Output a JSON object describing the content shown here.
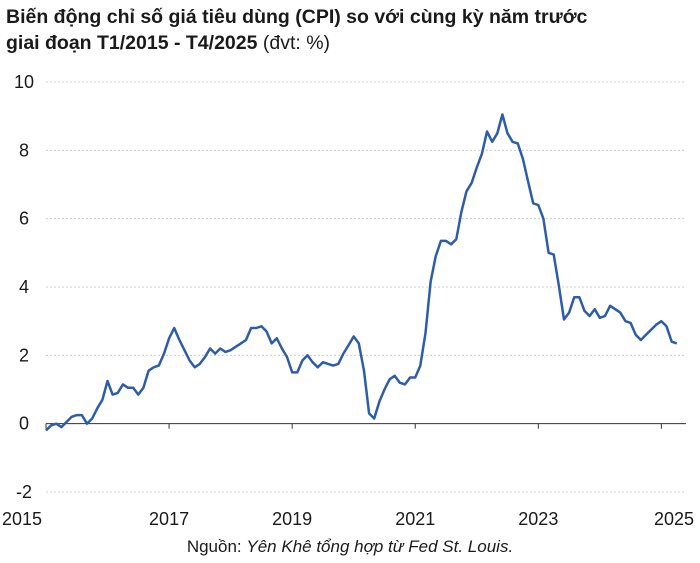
{
  "title": {
    "line1": "Biến động chỉ số giá tiêu dùng (CPI) so với cùng kỳ năm trước",
    "line2": "giai đoạn T1/2015 - T4/2025",
    "unit": "(đvt: %)"
  },
  "source": {
    "label": "Nguồn:",
    "text": "Yên Khê tổng hợp từ Fed St. Louis."
  },
  "colors": {
    "line": "#2d5ca8",
    "grid": "#cccccc",
    "axis": "#333333"
  },
  "chart_data": {
    "type": "line",
    "grid": "horizontal-dashed",
    "legend": "none",
    "ylim": [
      -2,
      10
    ],
    "yticks": [
      -2,
      0,
      2,
      4,
      6,
      8,
      10
    ],
    "xlim": [
      2015,
      2025.4
    ],
    "xticks": [
      2015,
      2017,
      2019,
      2021,
      2023,
      2025
    ],
    "x_unit": "year",
    "series": [
      {
        "x": [
          2015,
          2015.083,
          2015.167,
          2015.25,
          2015.333,
          2015.417,
          2015.5,
          2015.583,
          2015.667,
          2015.75,
          2015.833,
          2015.917,
          2016,
          2016.083,
          2016.167,
          2016.25,
          2016.333,
          2016.417,
          2016.5,
          2016.583,
          2016.667,
          2016.75,
          2016.833,
          2016.917,
          2017,
          2017.083,
          2017.167,
          2017.25,
          2017.333,
          2017.417,
          2017.5,
          2017.583,
          2017.667,
          2017.75,
          2017.833,
          2017.917,
          2018,
          2018.083,
          2018.167,
          2018.25,
          2018.333,
          2018.417,
          2018.5,
          2018.583,
          2018.667,
          2018.75,
          2018.833,
          2018.917,
          2019,
          2019.083,
          2019.167,
          2019.25,
          2019.333,
          2019.417,
          2019.5,
          2019.583,
          2019.667,
          2019.75,
          2019.833,
          2019.917,
          2020,
          2020.083,
          2020.167,
          2020.25,
          2020.333,
          2020.417,
          2020.5,
          2020.583,
          2020.667,
          2020.75,
          2020.833,
          2020.917,
          2021,
          2021.083,
          2021.167,
          2021.25,
          2021.333,
          2021.417,
          2021.5,
          2021.583,
          2021.667,
          2021.75,
          2021.833,
          2021.917,
          2022,
          2022.083,
          2022.167,
          2022.25,
          2022.333,
          2022.417,
          2022.5,
          2022.583,
          2022.667,
          2022.75,
          2022.833,
          2022.917,
          2023,
          2023.083,
          2023.167,
          2023.25,
          2023.333,
          2023.417,
          2023.5,
          2023.583,
          2023.667,
          2023.75,
          2023.833,
          2023.917,
          2024,
          2024.083,
          2024.167,
          2024.25,
          2024.333,
          2024.417,
          2024.5,
          2024.583,
          2024.667,
          2024.75,
          2024.833,
          2024.917,
          2025,
          2025.083,
          2025.167,
          2025.25
        ],
        "y": [
          -0.2,
          -0.05,
          0.0,
          -0.1,
          0.05,
          0.2,
          0.25,
          0.25,
          0.0,
          0.15,
          0.45,
          0.7,
          1.25,
          0.85,
          0.9,
          1.15,
          1.05,
          1.05,
          0.85,
          1.05,
          1.55,
          1.65,
          1.7,
          2.05,
          2.5,
          2.8,
          2.45,
          2.15,
          1.85,
          1.65,
          1.75,
          1.95,
          2.2,
          2.05,
          2.2,
          2.1,
          2.15,
          2.25,
          2.35,
          2.45,
          2.8,
          2.8,
          2.85,
          2.7,
          2.35,
          2.5,
          2.2,
          1.95,
          1.5,
          1.5,
          1.85,
          2.0,
          1.8,
          1.65,
          1.8,
          1.75,
          1.7,
          1.75,
          2.05,
          2.3,
          2.55,
          2.35,
          1.55,
          0.3,
          0.15,
          0.65,
          1.0,
          1.3,
          1.4,
          1.2,
          1.15,
          1.35,
          1.35,
          1.7,
          2.65,
          4.15,
          4.9,
          5.35,
          5.35,
          5.25,
          5.4,
          6.2,
          6.8,
          7.05,
          7.5,
          7.9,
          8.55,
          8.25,
          8.5,
          9.05,
          8.5,
          8.25,
          8.2,
          7.75,
          7.1,
          6.45,
          6.4,
          6.0,
          5.0,
          4.95,
          4.05,
          3.05,
          3.25,
          3.7,
          3.7,
          3.3,
          3.15,
          3.35,
          3.1,
          3.15,
          3.45,
          3.35,
          3.25,
          3.0,
          2.95,
          2.6,
          2.45,
          2.6,
          2.75,
          2.9,
          3.0,
          2.85,
          2.4,
          2.35
        ]
      }
    ]
  }
}
